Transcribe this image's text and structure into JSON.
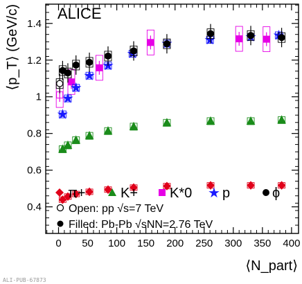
{
  "chart_data": {
    "type": "scatter",
    "experiment": "ALICE",
    "xlabel": "⟨N_part⟩",
    "ylabel": "⟨p_T⟩ (GeV/c)",
    "xlim": [
      -22,
      412
    ],
    "ylim": [
      0.255,
      1.505
    ],
    "x_ticks": [
      0,
      50,
      100,
      150,
      200,
      250,
      300,
      350,
      400
    ],
    "y_ticks": [
      0.4,
      0.6,
      0.8,
      1.0,
      1.2,
      1.4
    ],
    "y_tick_labels": [
      "0.4",
      "0.6",
      "0.8",
      "1",
      "1.2",
      "1.4"
    ],
    "grid": false,
    "legend": {
      "placement": "bottom",
      "species": [
        "π+",
        "K+",
        "K*0",
        "p",
        "ϕ"
      ],
      "open_note": "Open: pp √s=7 TeV",
      "filled_note": "Filled: Pb-Pb √sNN=2.76 TeV"
    },
    "watermark": "ALI-PUB-67873",
    "series": [
      {
        "name": "π+",
        "marker": "diamond",
        "color": "#e0001a",
        "pbpb": [
          {
            "x": 383,
            "y": 0.517
          },
          {
            "x": 330,
            "y": 0.517
          },
          {
            "x": 261,
            "y": 0.517
          },
          {
            "x": 186,
            "y": 0.513
          },
          {
            "x": 129,
            "y": 0.505
          },
          {
            "x": 85,
            "y": 0.494
          },
          {
            "x": 53,
            "y": 0.482
          },
          {
            "x": 30,
            "y": 0.47
          },
          {
            "x": 16,
            "y": 0.456
          },
          {
            "x": 7,
            "y": 0.439
          }
        ]
      },
      {
        "name": "K+",
        "marker": "triangle",
        "color": "#1a8c1a",
        "pbpb": [
          {
            "x": 383,
            "y": 0.873
          },
          {
            "x": 330,
            "y": 0.867
          },
          {
            "x": 261,
            "y": 0.867
          },
          {
            "x": 186,
            "y": 0.858
          },
          {
            "x": 129,
            "y": 0.837
          },
          {
            "x": 85,
            "y": 0.813
          },
          {
            "x": 53,
            "y": 0.787
          },
          {
            "x": 30,
            "y": 0.763
          },
          {
            "x": 16,
            "y": 0.735
          },
          {
            "x": 7,
            "y": 0.714
          }
        ]
      },
      {
        "name": "K*0",
        "marker": "square",
        "color": "#e600e6",
        "pp": [
          {
            "x": 2,
            "y": 1.01
          }
        ],
        "pbpb": [
          {
            "x": 357,
            "y": 1.314
          },
          {
            "x": 310,
            "y": 1.316
          },
          {
            "x": 158,
            "y": 1.296
          },
          {
            "x": 70,
            "y": 1.158
          },
          {
            "x": 22,
            "y": 1.081
          }
        ]
      },
      {
        "name": "p",
        "marker": "star",
        "color": "#1a1aff",
        "pbpb": [
          {
            "x": 378,
            "y": 1.335
          },
          {
            "x": 330,
            "y": 1.326
          },
          {
            "x": 260,
            "y": 1.31
          },
          {
            "x": 186,
            "y": 1.29
          },
          {
            "x": 127,
            "y": 1.235
          },
          {
            "x": 85,
            "y": 1.17
          },
          {
            "x": 53,
            "y": 1.115
          },
          {
            "x": 30,
            "y": 1.049
          },
          {
            "x": 16,
            "y": 0.991
          },
          {
            "x": 7,
            "y": 0.904
          }
        ]
      },
      {
        "name": "ϕ",
        "marker": "circle",
        "color": "#000000",
        "pp": [
          {
            "x": 2,
            "y": 1.072
          }
        ],
        "pbpb": [
          {
            "x": 383,
            "y": 1.323
          },
          {
            "x": 330,
            "y": 1.334
          },
          {
            "x": 261,
            "y": 1.344
          },
          {
            "x": 186,
            "y": 1.289
          },
          {
            "x": 129,
            "y": 1.25
          },
          {
            "x": 85,
            "y": 1.222
          },
          {
            "x": 53,
            "y": 1.188
          },
          {
            "x": 30,
            "y": 1.173
          },
          {
            "x": 16,
            "y": 1.13
          },
          {
            "x": 7,
            "y": 1.143
          }
        ]
      }
    ]
  }
}
